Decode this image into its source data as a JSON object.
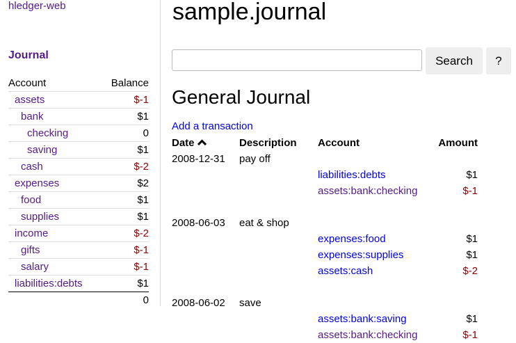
{
  "sidebar": {
    "brand": "hledger-web",
    "journal_link": "Journal",
    "header": {
      "account": "Account",
      "balance": "Balance"
    },
    "accounts": [
      {
        "name": "assets",
        "balance": "$-1",
        "depth": 0,
        "negative": true
      },
      {
        "name": "bank",
        "balance": "$1",
        "depth": 1,
        "negative": false
      },
      {
        "name": "checking",
        "balance": "0",
        "depth": 2,
        "negative": false
      },
      {
        "name": "saving",
        "balance": "$1",
        "depth": 2,
        "negative": false
      },
      {
        "name": "cash",
        "balance": "$-2",
        "depth": 1,
        "negative": true
      },
      {
        "name": "expenses",
        "balance": "$2",
        "depth": 0,
        "negative": false
      },
      {
        "name": "food",
        "balance": "$1",
        "depth": 1,
        "negative": false
      },
      {
        "name": "supplies",
        "balance": "$1",
        "depth": 1,
        "negative": false
      },
      {
        "name": "income",
        "balance": "$-2",
        "depth": 0,
        "negative": true
      },
      {
        "name": "gifts",
        "balance": "$-1",
        "depth": 1,
        "negative": true
      },
      {
        "name": "salary",
        "balance": "$-1",
        "depth": 1,
        "negative": true
      },
      {
        "name": "liabilities:debts",
        "balance": "$1",
        "depth": 0,
        "negative": false
      }
    ],
    "total": "0"
  },
  "main": {
    "title": "sample.journal",
    "search": {
      "value": "",
      "placeholder": "",
      "button": "Search",
      "help": "?"
    },
    "heading": "General Journal",
    "add_transaction": "Add a transaction",
    "columns": {
      "date": "Date",
      "sort_icon": "chevron-up-icon",
      "description": "Description",
      "account": "Account",
      "amount": "Amount"
    },
    "transactions": [
      {
        "date": "2008-12-31",
        "description": "pay off",
        "postings": [
          {
            "account": "liabilities:debts",
            "amount": "$1",
            "negative": false,
            "visited": false
          },
          {
            "account": "assets:bank:checking",
            "amount": "$-1",
            "negative": true,
            "visited": true
          }
        ]
      },
      {
        "date": "2008-06-03",
        "description": "eat & shop",
        "postings": [
          {
            "account": "expenses:food",
            "amount": "$1",
            "negative": false,
            "visited": false
          },
          {
            "account": "expenses:supplies",
            "amount": "$1",
            "negative": false,
            "visited": false
          },
          {
            "account": "assets:cash",
            "amount": "$-2",
            "negative": true,
            "visited": false
          }
        ]
      },
      {
        "date": "2008-06-02",
        "description": "save",
        "postings": [
          {
            "account": "assets:bank:saving",
            "amount": "$1",
            "negative": false,
            "visited": false
          },
          {
            "account": "assets:bank:checking",
            "amount": "$-1",
            "negative": true,
            "visited": true
          }
        ]
      }
    ]
  },
  "colors": {
    "visited_link": "#551a8b",
    "link": "#0000ee",
    "negative": "#8b0000"
  }
}
